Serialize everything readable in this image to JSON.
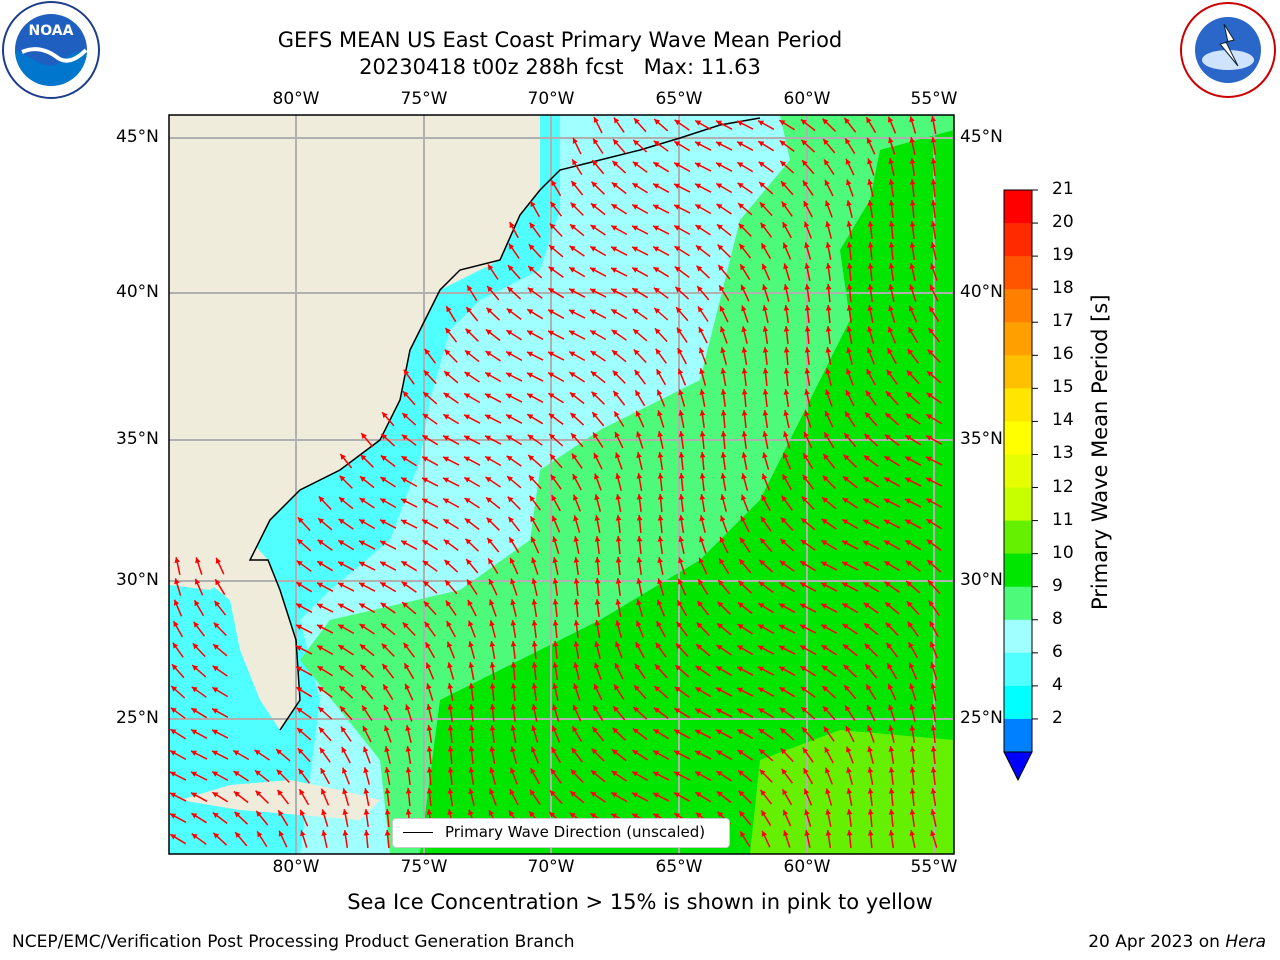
{
  "title": {
    "line1": "GEFS MEAN US East Coast Primary Wave Mean Period",
    "line2": "20230418 t00z 288h fcst   Max: 11.63"
  },
  "logos": {
    "left": {
      "text": "NOAA",
      "icon": "noaa-logo"
    },
    "right": {
      "icon": "nws-logo"
    }
  },
  "map": {
    "lon_labels_top": [
      "80°W",
      "75°W",
      "70°W",
      "65°W",
      "60°W",
      "55°W"
    ],
    "lon_labels_bottom": [
      "80°W",
      "75°W",
      "70°W",
      "65°W",
      "60°W",
      "55°W"
    ],
    "lat_labels_left": [
      "45°N",
      "40°N",
      "35°N",
      "30°N",
      "25°N"
    ],
    "lat_labels_right": [
      "45°N",
      "40°N",
      "35°N",
      "30°N",
      "25°N"
    ],
    "land_color": "#efecdc",
    "arrow_color": "#ff0000"
  },
  "legend": {
    "label": "Primary Wave Direction (unscaled)"
  },
  "colorbar": {
    "title": "Primary Wave Mean Period [s]",
    "ticks": [
      "21",
      "20",
      "19",
      "18",
      "17",
      "16",
      "15",
      "14",
      "13",
      "12",
      "11",
      "10",
      "9",
      "8",
      "6",
      "4",
      "2"
    ],
    "colors": [
      "#ff0000",
      "#ff2a00",
      "#ff5500",
      "#ff8000",
      "#ffa000",
      "#ffc000",
      "#ffe600",
      "#ffff00",
      "#e6ff00",
      "#c8ff00",
      "#64f000",
      "#00e600",
      "#4dfa7a",
      "#a0ffff",
      "#50ffff",
      "#00ffff",
      "#0080ff"
    ],
    "extend_color": "#0000ff"
  },
  "note": "Sea Ice Concentration > 15% is shown in pink to yellow",
  "footer": {
    "left": "NCEP/EMC/Verification Post Processing Product Generation Branch",
    "right_date": "20 Apr 2023 on ",
    "right_machine": "Hera"
  }
}
